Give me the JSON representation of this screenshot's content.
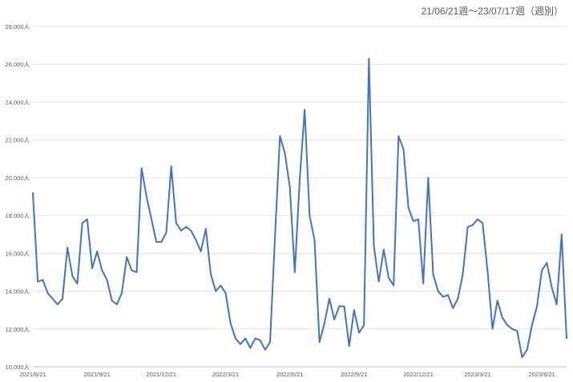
{
  "chart_data": {
    "type": "line",
    "title": "21/06/21週〜23/07/17週（週別）",
    "xlabel": "",
    "ylabel": "",
    "ylim": [
      10000,
      28000
    ],
    "grid": true,
    "y_ticks": [
      10000,
      12000,
      14000,
      16000,
      18000,
      20000,
      22000,
      24000,
      26000,
      28000
    ],
    "y_tick_labels": [
      "10,000人",
      "12,000人",
      "14,000人",
      "16,000人",
      "18,000人",
      "20,000人",
      "22,000人",
      "24,000人",
      "26,000人",
      "28,000人"
    ],
    "x_ticks": [
      {
        "index": 0,
        "label": "2021/6/21"
      },
      {
        "index": 13,
        "label": "2021/9/21"
      },
      {
        "index": 26,
        "label": "2021/12/21"
      },
      {
        "index": 39,
        "label": "2022/3/21"
      },
      {
        "index": 52,
        "label": "2022/6/21"
      },
      {
        "index": 65,
        "label": "2022/9/21"
      },
      {
        "index": 78,
        "label": "2022/12/21"
      },
      {
        "index": 90,
        "label": "2023/3/21"
      },
      {
        "index": 103,
        "label": "2023/6/21"
      }
    ],
    "line_color": "#4472C4",
    "series": [
      {
        "values": [
          19200,
          14500,
          14600,
          13900,
          13600,
          13300,
          13600,
          16300,
          14800,
          14400,
          17600,
          17800,
          15200,
          16100,
          15100,
          14600,
          13500,
          13300,
          13900,
          15800,
          15100,
          15000,
          20500,
          19000,
          17800,
          16600,
          16600,
          17100,
          20600,
          17600,
          17200,
          17400,
          17200,
          16700,
          16100,
          17300,
          14900,
          14000,
          14300,
          13900,
          12300,
          11500,
          11200,
          11500,
          11000,
          11500,
          11400,
          10900,
          11300,
          16900,
          22200,
          21300,
          19500,
          15000,
          19900,
          23600,
          18000,
          16700,
          11300,
          12300,
          13600,
          12500,
          13200,
          13200,
          11100,
          13000,
          11800,
          12200,
          26300,
          16400,
          14500,
          16200,
          14700,
          14300,
          22200,
          21500,
          18400,
          17700,
          17800,
          14400,
          20000,
          14900,
          14000,
          13700,
          13800,
          13100,
          13600,
          14900,
          17400,
          17500,
          17800,
          17600,
          15100,
          12000,
          13500,
          12600,
          12200,
          12000,
          11900,
          10500,
          10900,
          12200,
          13200,
          15100,
          15500,
          14200,
          13300,
          17000,
          11500
        ]
      }
    ]
  }
}
